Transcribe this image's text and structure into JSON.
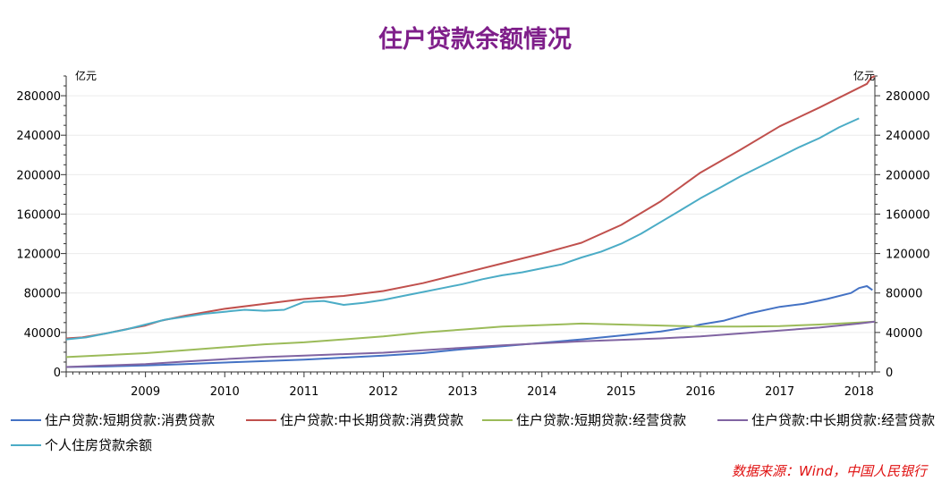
{
  "chart_data": {
    "type": "line",
    "title": "住户贷款余额情况",
    "left_unit": "亿元",
    "right_unit": "亿元",
    "x_tick_labels": [
      "2009",
      "2010",
      "2011",
      "2012",
      "2013",
      "2014",
      "2015",
      "2016",
      "2017",
      "2018"
    ],
    "x_range": [
      2008.0,
      2018.2
    ],
    "y_ticks": [
      0,
      40000,
      80000,
      120000,
      160000,
      200000,
      240000,
      280000
    ],
    "y_tick_labels": [
      "0",
      "40000",
      "80000",
      "120000",
      "160000",
      "200000",
      "240000",
      "280000"
    ],
    "ylim": [
      0,
      300000
    ],
    "grid": true,
    "legend_position": "bottom",
    "source_note": "数据来源：Wind，中国人民银行",
    "series": [
      {
        "name": "住户贷款:短期贷款:消费贷款",
        "color": "#4472c4",
        "points": [
          [
            2008.0,
            5000
          ],
          [
            2008.5,
            5500
          ],
          [
            2009.0,
            6500
          ],
          [
            2009.5,
            8000
          ],
          [
            2010.0,
            9500
          ],
          [
            2010.5,
            11000
          ],
          [
            2011.0,
            12500
          ],
          [
            2011.5,
            14500
          ],
          [
            2012.0,
            16500
          ],
          [
            2012.5,
            19000
          ],
          [
            2013.0,
            23000
          ],
          [
            2013.5,
            26000
          ],
          [
            2014.0,
            29500
          ],
          [
            2014.5,
            33000
          ],
          [
            2015.0,
            37000
          ],
          [
            2015.5,
            41000
          ],
          [
            2015.9,
            46000
          ],
          [
            2016.0,
            48000
          ],
          [
            2016.3,
            52000
          ],
          [
            2016.6,
            59000
          ],
          [
            2017.0,
            66000
          ],
          [
            2017.3,
            69000
          ],
          [
            2017.6,
            74000
          ],
          [
            2017.9,
            80000
          ],
          [
            2018.0,
            85000
          ],
          [
            2018.1,
            87000
          ],
          [
            2018.17,
            83000
          ]
        ]
      },
      {
        "name": "住户贷款:中长期贷款:消费贷款",
        "color": "#c0504d",
        "points": [
          [
            2008.0,
            34000
          ],
          [
            2008.2,
            35000
          ],
          [
            2008.5,
            39000
          ],
          [
            2008.8,
            44000
          ],
          [
            2009.0,
            47000
          ],
          [
            2009.2,
            52000
          ],
          [
            2009.5,
            57000
          ],
          [
            2010.0,
            64000
          ],
          [
            2010.5,
            69000
          ],
          [
            2011.0,
            74000
          ],
          [
            2011.5,
            77000
          ],
          [
            2012.0,
            82000
          ],
          [
            2012.5,
            90000
          ],
          [
            2013.0,
            100000
          ],
          [
            2013.5,
            110000
          ],
          [
            2014.0,
            120000
          ],
          [
            2014.5,
            131000
          ],
          [
            2015.0,
            149000
          ],
          [
            2015.5,
            173000
          ],
          [
            2016.0,
            202000
          ],
          [
            2016.5,
            225000
          ],
          [
            2017.0,
            249000
          ],
          [
            2017.5,
            268000
          ],
          [
            2018.0,
            288000
          ],
          [
            2018.1,
            292000
          ],
          [
            2018.15,
            298000
          ],
          [
            2018.2,
            300000
          ]
        ]
      },
      {
        "name": "住户贷款:短期贷款:经营贷款",
        "color": "#9bbb59",
        "points": [
          [
            2008.0,
            15000
          ],
          [
            2008.5,
            17000
          ],
          [
            2009.0,
            19000
          ],
          [
            2009.5,
            22000
          ],
          [
            2010.0,
            25000
          ],
          [
            2010.5,
            28000
          ],
          [
            2011.0,
            30000
          ],
          [
            2011.5,
            33000
          ],
          [
            2012.0,
            36000
          ],
          [
            2012.5,
            40000
          ],
          [
            2013.0,
            43000
          ],
          [
            2013.5,
            46000
          ],
          [
            2014.0,
            47500
          ],
          [
            2014.5,
            49000
          ],
          [
            2015.0,
            48000
          ],
          [
            2015.5,
            47000
          ],
          [
            2016.0,
            46000
          ],
          [
            2016.5,
            46000
          ],
          [
            2017.0,
            46500
          ],
          [
            2017.5,
            48000
          ],
          [
            2018.0,
            50000
          ],
          [
            2018.2,
            51000
          ]
        ]
      },
      {
        "name": "住户贷款:中长期贷款:经营贷款",
        "color": "#8064a2",
        "points": [
          [
            2008.0,
            5000
          ],
          [
            2008.5,
            6500
          ],
          [
            2009.0,
            8000
          ],
          [
            2009.5,
            10500
          ],
          [
            2010.0,
            13000
          ],
          [
            2010.5,
            15000
          ],
          [
            2011.0,
            16500
          ],
          [
            2011.5,
            18000
          ],
          [
            2012.0,
            19500
          ],
          [
            2012.5,
            22000
          ],
          [
            2013.0,
            24500
          ],
          [
            2013.5,
            27000
          ],
          [
            2014.0,
            29000
          ],
          [
            2014.5,
            31000
          ],
          [
            2015.0,
            32500
          ],
          [
            2015.5,
            34000
          ],
          [
            2016.0,
            36000
          ],
          [
            2016.5,
            39000
          ],
          [
            2017.0,
            42000
          ],
          [
            2017.5,
            45000
          ],
          [
            2018.0,
            49000
          ],
          [
            2018.2,
            51000
          ]
        ]
      },
      {
        "name": "个人住房贷款余额",
        "color": "#4bacc6",
        "points": [
          [
            2008.0,
            33000
          ],
          [
            2008.25,
            35000
          ],
          [
            2008.5,
            39000
          ],
          [
            2008.75,
            43000
          ],
          [
            2009.0,
            48000
          ],
          [
            2009.25,
            53000
          ],
          [
            2009.5,
            56000
          ],
          [
            2009.75,
            59000
          ],
          [
            2010.0,
            61000
          ],
          [
            2010.25,
            63000
          ],
          [
            2010.5,
            62000
          ],
          [
            2010.75,
            63000
          ],
          [
            2011.0,
            71000
          ],
          [
            2011.25,
            72000
          ],
          [
            2011.5,
            68000
          ],
          [
            2011.75,
            70000
          ],
          [
            2012.0,
            73000
          ],
          [
            2012.25,
            77000
          ],
          [
            2012.5,
            81000
          ],
          [
            2012.75,
            85000
          ],
          [
            2013.0,
            89000
          ],
          [
            2013.25,
            94000
          ],
          [
            2013.5,
            98000
          ],
          [
            2013.75,
            101000
          ],
          [
            2014.0,
            105000
          ],
          [
            2014.25,
            109000
          ],
          [
            2014.5,
            116000
          ],
          [
            2014.75,
            122000
          ],
          [
            2015.0,
            130000
          ],
          [
            2015.25,
            140000
          ],
          [
            2015.5,
            152000
          ],
          [
            2015.75,
            164000
          ],
          [
            2016.0,
            176000
          ],
          [
            2016.25,
            187000
          ],
          [
            2016.5,
            198000
          ],
          [
            2016.75,
            208000
          ],
          [
            2017.0,
            218000
          ],
          [
            2017.25,
            228000
          ],
          [
            2017.5,
            237000
          ],
          [
            2017.75,
            248000
          ],
          [
            2018.0,
            257000
          ]
        ]
      }
    ]
  }
}
